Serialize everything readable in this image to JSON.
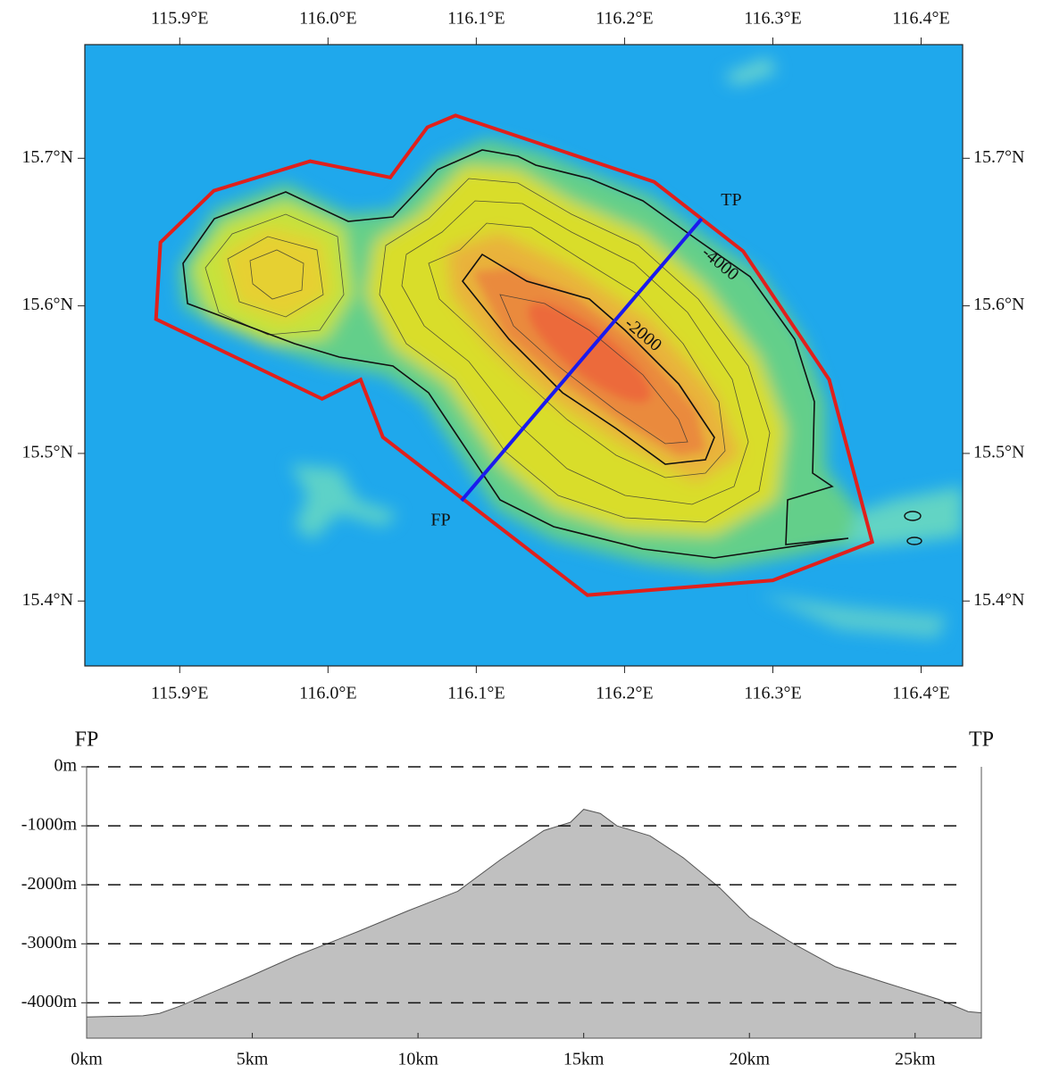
{
  "chart_data": [
    {
      "type": "map",
      "xlim": [
        115.836,
        116.428
      ],
      "ylim": [
        15.356,
        15.777
      ],
      "xticks": [
        {
          "value": 115.9,
          "label": "115.9°E"
        },
        {
          "value": 116.0,
          "label": "116.0°E"
        },
        {
          "value": 116.1,
          "label": "116.1°E"
        },
        {
          "value": 116.2,
          "label": "116.2°E"
        },
        {
          "value": 116.3,
          "label": "116.3°E"
        },
        {
          "value": 116.4,
          "label": "116.4°E"
        }
      ],
      "yticks": [
        {
          "value": 15.4,
          "label": "15.4°N"
        },
        {
          "value": 15.5,
          "label": "15.5°N"
        },
        {
          "value": 15.6,
          "label": "15.6°N"
        },
        {
          "value": 15.7,
          "label": "15.7°N"
        }
      ],
      "boundary": {
        "color": "#e0201c",
        "x": [
          116.086,
          116.067,
          116.042,
          115.988,
          115.923,
          115.887,
          115.884,
          115.996,
          116.022,
          116.037,
          116.175,
          116.3,
          116.367,
          116.338,
          116.28,
          116.22
        ],
        "y": [
          15.729,
          15.721,
          15.687,
          15.698,
          15.678,
          15.643,
          15.591,
          15.537,
          15.55,
          15.511,
          15.404,
          15.414,
          15.44,
          15.55,
          15.637,
          15.684
        ]
      },
      "profile_line": {
        "color": "#1a1aee",
        "x": [
          116.09,
          116.252
        ],
        "y": [
          15.468,
          15.659
        ]
      },
      "annotations": [
        {
          "text": "FP",
          "x": 116.076,
          "y": 15.454
        },
        {
          "text": "TP",
          "x": 116.272,
          "y": 15.671
        },
        {
          "text": "-4000",
          "x": 116.264,
          "y": 15.628
        },
        {
          "text": "-2000",
          "x": 116.212,
          "y": 15.58
        }
      ]
    },
    {
      "type": "area",
      "color": "#c0c0c0",
      "x": [
        0,
        1.7,
        2.2,
        2.8,
        4.9,
        6.3,
        8.2,
        9.7,
        11.2,
        12.5,
        13.8,
        14.6,
        15.0,
        15.5,
        16.0,
        17.0,
        18.0,
        19.1,
        20.0,
        21.3,
        22.6,
        24.1,
        25.7,
        26.6,
        27.0
      ],
      "values": [
        -4240,
        -4220,
        -4180,
        -4060,
        -3560,
        -3210,
        -2790,
        -2440,
        -2110,
        -1570,
        -1080,
        -940,
        -720,
        -790,
        -1000,
        -1170,
        -1540,
        -2050,
        -2550,
        -2990,
        -3390,
        -3660,
        -3940,
        -4150,
        -4170
      ],
      "xlim": [
        0,
        27
      ],
      "ylim": [
        -4600,
        0
      ],
      "xticks": [
        {
          "value": 0,
          "label": "0km"
        },
        {
          "value": 5,
          "label": "5km"
        },
        {
          "value": 10,
          "label": "10km"
        },
        {
          "value": 15,
          "label": "15km"
        },
        {
          "value": 20,
          "label": "20km"
        },
        {
          "value": 25,
          "label": "25km"
        }
      ],
      "yticks": [
        {
          "value": 0,
          "label": "0m"
        },
        {
          "value": -1000,
          "label": "-1000m"
        },
        {
          "value": -2000,
          "label": "-2000m"
        },
        {
          "value": -3000,
          "label": "-3000m"
        },
        {
          "value": -4000,
          "label": "-4000m"
        }
      ],
      "grid": true,
      "annotations": [
        {
          "text": "FP",
          "x": 0
        },
        {
          "text": "TP",
          "x": 27
        }
      ]
    }
  ]
}
